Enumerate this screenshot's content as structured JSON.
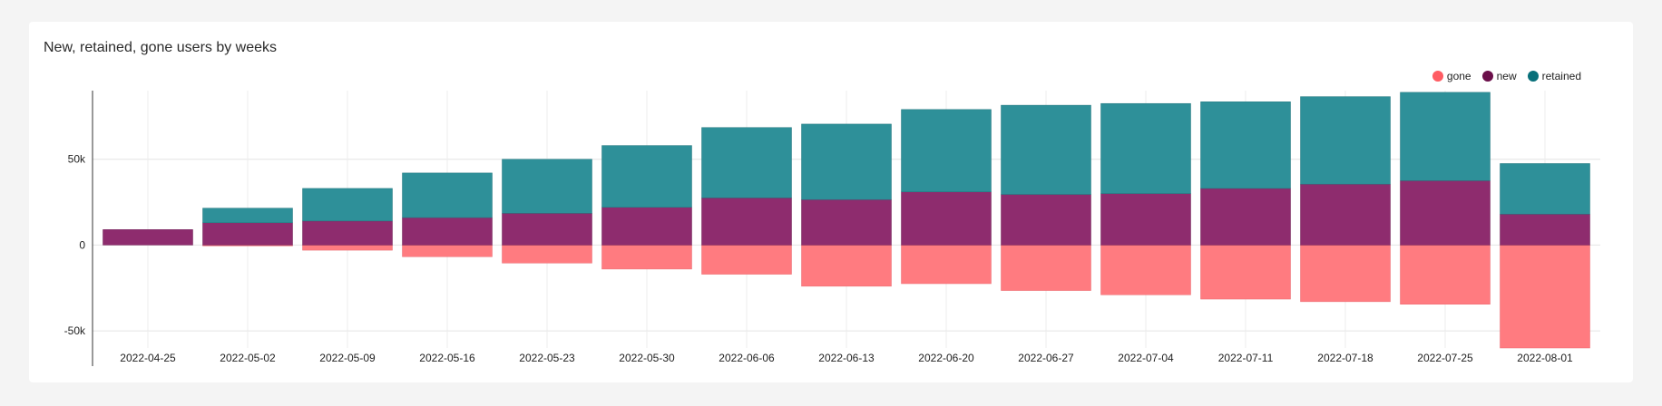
{
  "chart_data": {
    "type": "bar",
    "stacked": true,
    "title": "New, retained, gone users by weeks",
    "categories": [
      "2022-04-25",
      "2022-05-02",
      "2022-05-09",
      "2022-05-16",
      "2022-05-23",
      "2022-05-30",
      "2022-06-06",
      "2022-06-13",
      "2022-06-20",
      "2022-06-27",
      "2022-07-04",
      "2022-07-11",
      "2022-07-18",
      "2022-07-25",
      "2022-08-01"
    ],
    "series": [
      {
        "name": "gone",
        "color": "#ff7b80",
        "values": [
          0,
          -500,
          -3000,
          -6800,
          -10500,
          -14000,
          -17000,
          -24000,
          -22500,
          -26500,
          -29000,
          -31500,
          -33000,
          -34500,
          -60000
        ]
      },
      {
        "name": "new",
        "color": "#8e2c6e",
        "values": [
          9000,
          13000,
          14000,
          16000,
          18500,
          22000,
          27500,
          26500,
          31000,
          29500,
          30000,
          33000,
          35500,
          37500,
          18000
        ]
      },
      {
        "name": "retained",
        "color": "#2e9099",
        "values": [
          0,
          8500,
          19000,
          26000,
          31500,
          36000,
          41000,
          44000,
          48000,
          52000,
          52500,
          50500,
          51000,
          51500,
          29500
        ]
      }
    ],
    "yticks": [
      50000,
      0,
      -50000
    ],
    "ytick_labels": [
      "50k",
      "0",
      "-50k"
    ],
    "ylim": [
      -60000,
      90000
    ],
    "legend_position": "top-right",
    "grid": true
  },
  "legend": [
    {
      "label": "gone",
      "color": "#ff5c63"
    },
    {
      "label": "new",
      "color": "#6b0f4a"
    },
    {
      "label": "retained",
      "color": "#08707a"
    }
  ]
}
